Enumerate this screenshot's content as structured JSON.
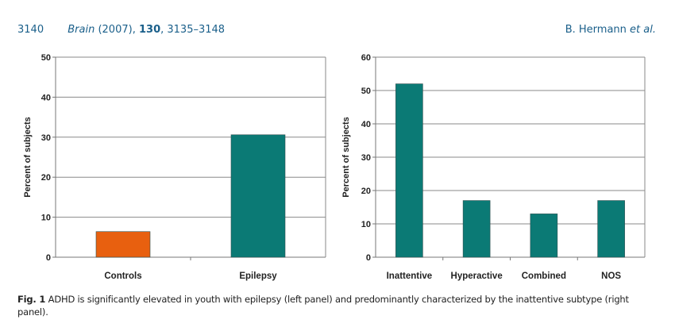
{
  "header": {
    "page_number": "3140",
    "journal": "Brain",
    "citation_year": "(2007),",
    "volume": "130",
    "pages": ", 3135–3148",
    "authors": "B. Hermann",
    "authors_suffix": "et al."
  },
  "caption": {
    "label": "Fig. 1",
    "text": " ADHD is significantly elevated in youth with epilepsy (left panel) and predominantly characterized by the inattentive subtype (right panel)."
  },
  "chart_data": [
    {
      "type": "bar",
      "panel": "left",
      "title": "",
      "xlabel": "",
      "ylabel": "Percent of subjects",
      "categories": [
        "Controls",
        "Epilepsy"
      ],
      "values": [
        6.4,
        30.6
      ],
      "colors": [
        "#e8600f",
        "#0b7a75"
      ],
      "ylim": [
        0,
        50
      ],
      "yticks": [
        0,
        10,
        20,
        30,
        40,
        50
      ],
      "grid": true,
      "legend": "none"
    },
    {
      "type": "bar",
      "panel": "right",
      "title": "",
      "xlabel": "",
      "ylabel": "Percent of subjects",
      "categories": [
        "Inattentive",
        "Hyperactive",
        "Combined",
        "NOS"
      ],
      "values": [
        52,
        17,
        13,
        17
      ],
      "colors": [
        "#0b7a75",
        "#0b7a75",
        "#0b7a75",
        "#0b7a75"
      ],
      "ylim": [
        0,
        60
      ],
      "yticks": [
        0,
        10,
        20,
        30,
        40,
        50,
        60
      ],
      "grid": true,
      "legend": "none"
    }
  ]
}
